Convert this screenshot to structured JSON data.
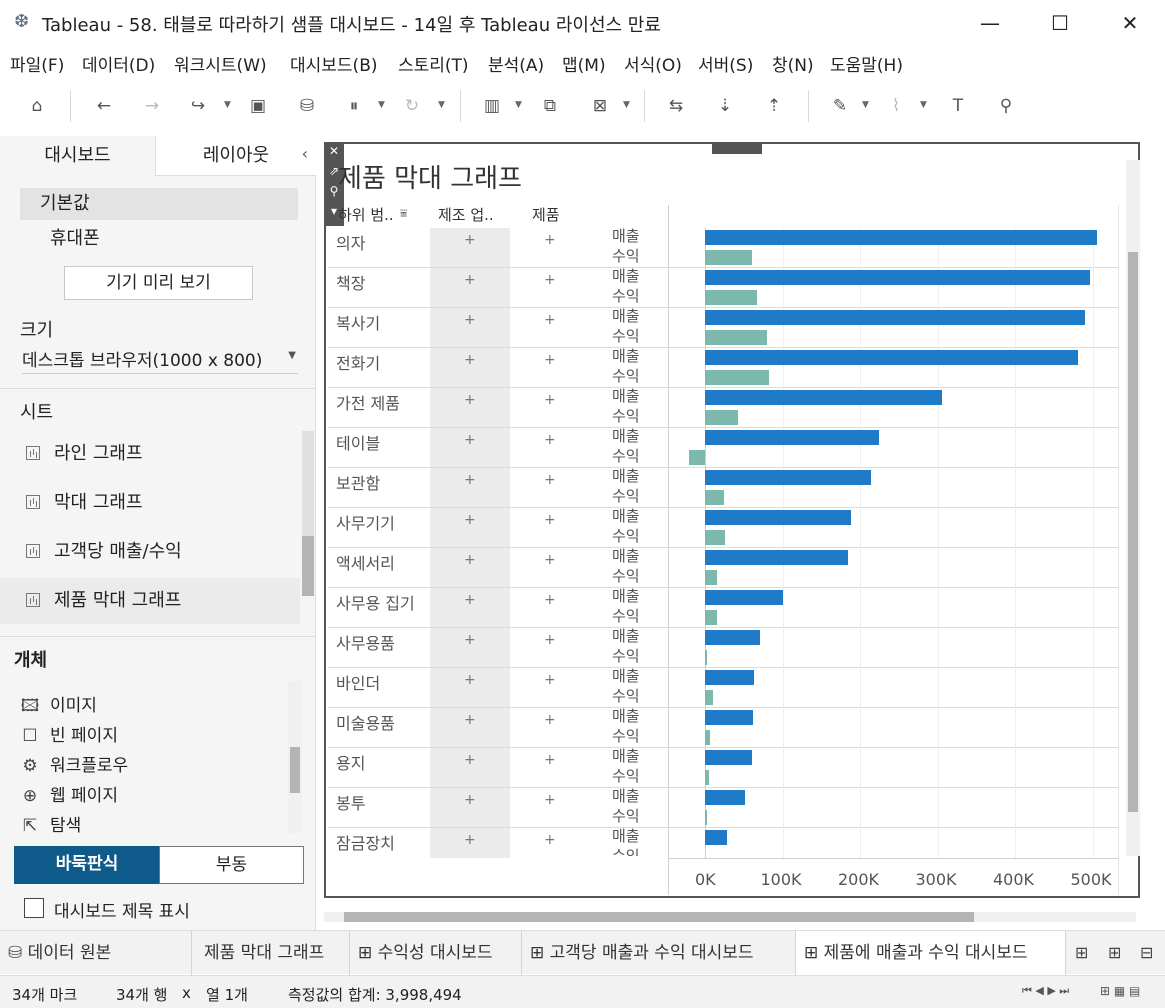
{
  "window": {
    "title": "Tableau - 58. 태블로 따라하기 샘플 대시보드 - 14일 후 Tableau 라이선스 만료",
    "minimize": "—",
    "maximize": "☐",
    "close": "✕"
  },
  "menu": [
    "파일(F)",
    "데이터(D)",
    "워크시트(W)",
    "대시보드(B)",
    "스토리(T)",
    "분석(A)",
    "맵(M)",
    "서식(O)",
    "서버(S)",
    "창(N)",
    "도움말(H)"
  ],
  "toolbar_icons": [
    "home-icon",
    "back-icon",
    "forward-icon",
    "undo-redo-icon",
    "save-icon",
    "add-datasource-icon",
    "pause-icon",
    "refresh-icon",
    "new-worksheet-icon",
    "duplicate-icon",
    "clear-icon",
    "swap-icon",
    "sort-ascending-icon",
    "sort-descending-icon",
    "highlight-icon",
    "attach-icon",
    "text-label-icon",
    "pin-icon"
  ],
  "left_panel": {
    "tabs": [
      "대시보드",
      "레이아웃"
    ],
    "collapse": "‹",
    "devices": [
      "기본값",
      "휴대폰"
    ],
    "preview_button": "기기 미리 보기",
    "size_title": "크기",
    "size_value": "데스크톱 브라우저(1000 x 800)",
    "sheets_title": "시트",
    "sheets": [
      "라인 그래프",
      "막대 그래프",
      "고객당 매출/수익",
      "제품 막대 그래프"
    ],
    "objects_title": "개체",
    "objects": [
      {
        "label": "이미지",
        "icon": "image-icon"
      },
      {
        "label": "빈 페이지",
        "icon": "blank-page-icon"
      },
      {
        "label": "워크플로우",
        "icon": "workflow-icon"
      },
      {
        "label": "웹 페이지",
        "icon": "globe-icon"
      },
      {
        "label": "탐색",
        "icon": "navigation-icon"
      }
    ],
    "tiled": "바둑판식",
    "floating": "부동",
    "show_title": "대시보드 제목 표시"
  },
  "viz": {
    "title": "제품 막대 그래프",
    "col_headers": [
      "하위 범..",
      "제조 업..",
      "제품"
    ],
    "measure_sales": "매출",
    "measure_profit": "수익",
    "plus": "+"
  },
  "chart_data": {
    "type": "bar",
    "title": "제품 막대 그래프",
    "orientation": "horizontal",
    "categories": [
      "의자",
      "책장",
      "복사기",
      "전화기",
      "가전 제품",
      "테이블",
      "보관함",
      "사무기기",
      "액세서리",
      "사무용 집기",
      "사무용품",
      "바인더",
      "미술용품",
      "용지",
      "봉투",
      "잠금장치"
    ],
    "series": [
      {
        "name": "매출",
        "values": [
          506000,
          497000,
          490000,
          481000,
          306000,
          225000,
          214000,
          188000,
          184000,
          101000,
          71000,
          63000,
          62000,
          60000,
          52000,
          28000
        ]
      },
      {
        "name": "수익",
        "values": [
          61000,
          67000,
          80000,
          82000,
          43000,
          -20000,
          24000,
          26000,
          15000,
          15000,
          3000,
          10000,
          7000,
          5000,
          3000,
          null
        ]
      }
    ],
    "x_ticks": [
      "0K",
      "100K",
      "200K",
      "300K",
      "400K",
      "500K"
    ],
    "xlim": [
      -20000,
      530000
    ],
    "grid": true,
    "colors": {
      "sales": "#1f7ac8",
      "profit": "#7cb8ac"
    }
  },
  "sheet_tabs": [
    {
      "label": "데이터 원본",
      "icon": "datasource-icon"
    },
    {
      "label": "제품 막대 그래프",
      "icon": ""
    },
    {
      "label": "수익성 대시보드",
      "icon": "dashboard-icon"
    },
    {
      "label": "고객당 매출과 수익 대시보드",
      "icon": "dashboard-icon"
    },
    {
      "label": "제품에 매출과 수익 대시보드",
      "icon": "dashboard-icon"
    }
  ],
  "status": {
    "marks": "34개 마크",
    "rows": "34개 행",
    "x": "x",
    "cols": "열 1개",
    "sum": "측정값의 합계: 3,998,494"
  }
}
